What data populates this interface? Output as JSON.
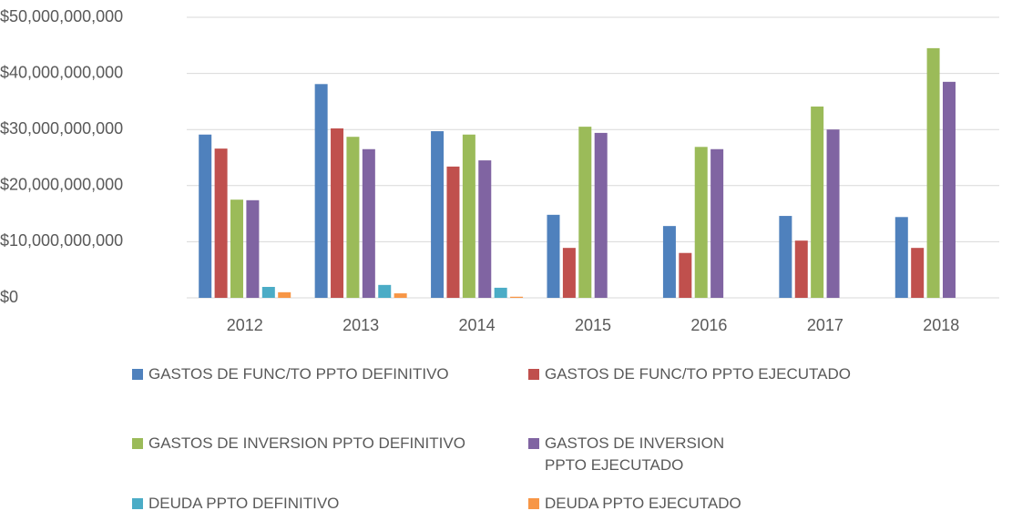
{
  "chart_data": {
    "type": "bar",
    "categories": [
      "2012",
      "2013",
      "2014",
      "2015",
      "2016",
      "2017",
      "2018"
    ],
    "series": [
      {
        "name": "GASTOS DE FUNC/TO PPTO DEFINITIVO",
        "color": "#4f81bd",
        "values": [
          29100000000,
          38100000000,
          29700000000,
          14800000000,
          12800000000,
          14600000000,
          14400000000
        ]
      },
      {
        "name": "GASTOS DE FUNC/TO PPTO EJECUTADO",
        "color": "#c0504d",
        "values": [
          26600000000,
          30200000000,
          23400000000,
          8900000000,
          8000000000,
          10200000000,
          8900000000
        ]
      },
      {
        "name": "GASTOS DE INVERSION PPTO DEFINITIVO",
        "color": "#9bbb59",
        "values": [
          17500000000,
          28700000000,
          29100000000,
          30500000000,
          26900000000,
          34100000000,
          44500000000
        ]
      },
      {
        "name": "GASTOS DE INVERSION PPTO EJECUTADO",
        "color": "#8064a2",
        "values": [
          17400000000,
          26500000000,
          24500000000,
          29400000000,
          26500000000,
          30000000000,
          38500000000
        ]
      },
      {
        "name": "DEUDA PPTO  DEFINITIVO",
        "color": "#4bacc6",
        "values": [
          1950000000,
          2300000000,
          1800000000,
          0,
          0,
          0,
          0
        ]
      },
      {
        "name": "DEUDA PPTO  EJECUTADO",
        "color": "#f79646",
        "values": [
          1000000000,
          800000000,
          200000000,
          0,
          0,
          0,
          0
        ]
      }
    ],
    "ylim": [
      0,
      50000000000
    ],
    "yticks": [
      {
        "value": 0,
        "label": "$0"
      },
      {
        "value": 10000000000,
        "label": "$10,000,000,000"
      },
      {
        "value": 20000000000,
        "label": "$20,000,000,000"
      },
      {
        "value": 30000000000,
        "label": "$30,000,000,000"
      },
      {
        "value": 40000000000,
        "label": "$40,000,000,000"
      },
      {
        "value": 50000000000,
        "label": "$50,000,000,000"
      }
    ],
    "grid": true
  }
}
